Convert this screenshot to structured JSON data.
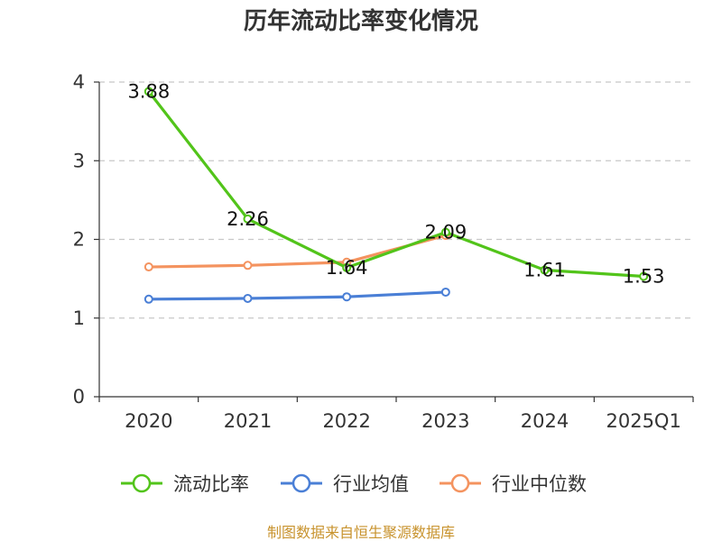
{
  "chart_data": {
    "type": "line",
    "title": "历年流动比率变化情况",
    "categories": [
      "2020",
      "2021",
      "2022",
      "2023",
      "2024",
      "2025Q1"
    ],
    "ylim": [
      0,
      4
    ],
    "yticks": [
      "0",
      "1",
      "2",
      "3",
      "4"
    ],
    "grid": true,
    "legend_position": "bottom",
    "series": [
      {
        "name": "流动比率",
        "color": "#52c41a",
        "values": [
          3.88,
          2.26,
          1.64,
          2.09,
          1.61,
          1.53
        ],
        "data_labels": [
          "3.88",
          "2.26",
          "1.64",
          "2.09",
          "1.61",
          "1.53"
        ]
      },
      {
        "name": "行业均值",
        "color": "#4a7fd6",
        "values": [
          1.24,
          1.25,
          1.27,
          1.33,
          null,
          null
        ]
      },
      {
        "name": "行业中位数",
        "color": "#f4935f",
        "values": [
          1.65,
          1.67,
          1.71,
          2.05,
          null,
          null
        ]
      }
    ]
  },
  "source": {
    "text": "制图数据来自恒生聚源数据库",
    "color": "#c8932e"
  }
}
